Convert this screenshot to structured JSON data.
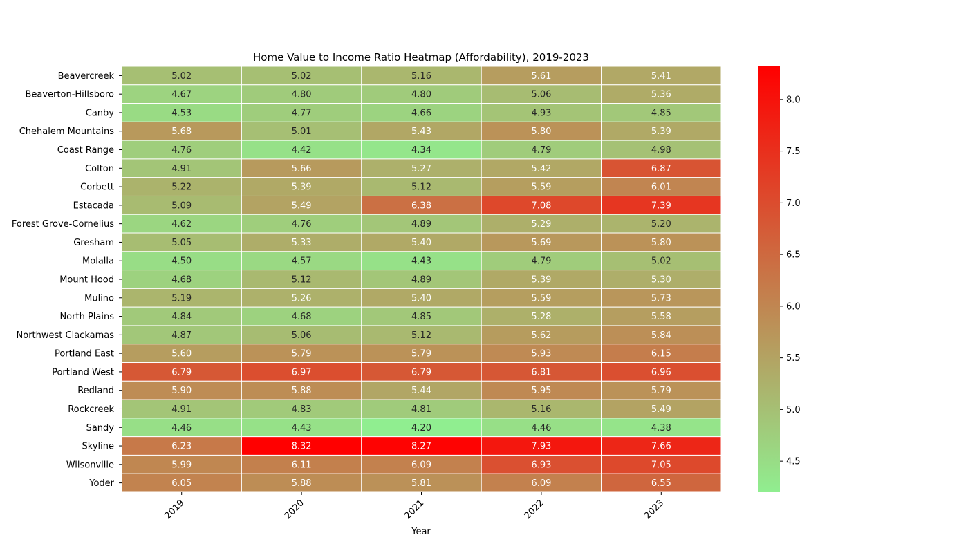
{
  "chart_data": {
    "type": "heatmap",
    "title": "Home Value to Income Ratio Heatmap (Affordability), 2019-2023",
    "xlabel": "Year",
    "ylabel": "",
    "x": [
      "2019",
      "2020",
      "2021",
      "2022",
      "2023"
    ],
    "y": [
      "Beavercreek",
      "Beaverton-Hillsboro",
      "Canby",
      "Chehalem Mountains",
      "Coast Range",
      "Colton",
      "Corbett",
      "Estacada",
      "Forest Grove-Cornelius",
      "Gresham",
      "Molalla",
      "Mount Hood",
      "Mulino",
      "North Plains",
      "Northwest Clackamas",
      "Portland East",
      "Portland West",
      "Redland",
      "Rockcreek",
      "Sandy",
      "Skyline",
      "Wilsonville",
      "Yoder"
    ],
    "values": [
      [
        5.02,
        5.02,
        5.16,
        5.61,
        5.41
      ],
      [
        4.67,
        4.8,
        4.8,
        5.06,
        5.36
      ],
      [
        4.53,
        4.77,
        4.66,
        4.93,
        4.85
      ],
      [
        5.68,
        5.01,
        5.43,
        5.8,
        5.39
      ],
      [
        4.76,
        4.42,
        4.34,
        4.79,
        4.98
      ],
      [
        4.91,
        5.66,
        5.27,
        5.42,
        6.87
      ],
      [
        5.22,
        5.39,
        5.12,
        5.59,
        6.01
      ],
      [
        5.09,
        5.49,
        6.38,
        7.08,
        7.39
      ],
      [
        4.62,
        4.76,
        4.89,
        5.29,
        5.2
      ],
      [
        5.05,
        5.33,
        5.4,
        5.69,
        5.8
      ],
      [
        4.5,
        4.57,
        4.43,
        4.79,
        5.02
      ],
      [
        4.68,
        5.12,
        4.89,
        5.39,
        5.3
      ],
      [
        5.19,
        5.26,
        5.4,
        5.59,
        5.73
      ],
      [
        4.84,
        4.68,
        4.85,
        5.28,
        5.58
      ],
      [
        4.87,
        5.06,
        5.12,
        5.62,
        5.84
      ],
      [
        5.6,
        5.79,
        5.79,
        5.93,
        6.15
      ],
      [
        6.79,
        6.97,
        6.79,
        6.81,
        6.96
      ],
      [
        5.9,
        5.88,
        5.44,
        5.95,
        5.79
      ],
      [
        4.91,
        4.83,
        4.81,
        5.16,
        5.49
      ],
      [
        4.46,
        4.43,
        4.2,
        4.46,
        4.38
      ],
      [
        6.23,
        8.32,
        8.27,
        7.93,
        7.66
      ],
      [
        5.99,
        6.11,
        6.09,
        6.93,
        7.05
      ],
      [
        6.05,
        5.88,
        5.81,
        6.09,
        6.55
      ]
    ],
    "color_range": [
      4.2,
      8.32
    ],
    "colorbar_ticks": [
      "4.5",
      "5.0",
      "5.5",
      "6.0",
      "6.5",
      "7.0",
      "7.5",
      "8.0"
    ],
    "colormap": [
      "#90ee90",
      "#ff0000"
    ],
    "annot_text_threshold": 5.25
  }
}
